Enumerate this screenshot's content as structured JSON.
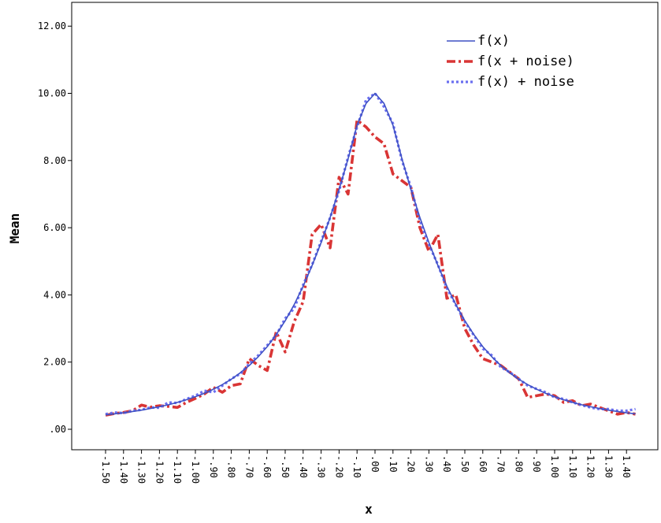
{
  "chart_data": {
    "type": "line",
    "xlabel": "x",
    "ylabel": "Mean",
    "xlim": [
      -1.5,
      1.5
    ],
    "ylim": [
      0,
      12.5
    ],
    "grid": false,
    "legend_position": "top-right",
    "x_ticks": [
      -1.5,
      -1.4,
      -1.3,
      -1.2,
      -1.1,
      -1.0,
      -0.9,
      -0.8,
      -0.7,
      -0.6,
      -0.5,
      -0.4,
      -0.3,
      -0.2,
      -0.1,
      0.0,
      0.1,
      0.2,
      0.3,
      0.4,
      0.5,
      0.6,
      0.7,
      0.8,
      0.9,
      1.0,
      1.1,
      1.2,
      1.3,
      1.4
    ],
    "x_tick_labels": [
      "-1.50",
      "-1.40",
      "-1.30",
      "-1.20",
      "-1.10",
      "-1.00",
      "-.90",
      "-.80",
      "-.70",
      "-.60",
      "-.50",
      "-.40",
      "-.30",
      "-.20",
      "-.10",
      ".00",
      ".10",
      ".20",
      ".30",
      ".40",
      ".50",
      ".60",
      ".70",
      ".80",
      ".90",
      "1.00",
      "1.10",
      "1.20",
      "1.30",
      "1.40"
    ],
    "y_ticks": [
      0,
      2,
      4,
      6,
      8,
      10,
      12
    ],
    "y_tick_labels": [
      ".00",
      "2.00",
      "4.00",
      "6.00",
      "8.00",
      "10.00",
      "12.00"
    ],
    "series": [
      {
        "name": "f(x)",
        "color": "#3f51c4",
        "style": "solid",
        "x": [
          -1.5,
          -1.45,
          -1.4,
          -1.35,
          -1.3,
          -1.25,
          -1.2,
          -1.15,
          -1.1,
          -1.05,
          -1.0,
          -0.95,
          -0.9,
          -0.85,
          -0.8,
          -0.75,
          -0.7,
          -0.65,
          -0.6,
          -0.55,
          -0.5,
          -0.45,
          -0.4,
          -0.35,
          -0.3,
          -0.25,
          -0.2,
          -0.15,
          -0.1,
          -0.05,
          0.0,
          0.05,
          0.1,
          0.15,
          0.2,
          0.25,
          0.3,
          0.35,
          0.4,
          0.45,
          0.5,
          0.55,
          0.6,
          0.65,
          0.7,
          0.75,
          0.8,
          0.85,
          0.9,
          0.95,
          1.0,
          1.05,
          1.1,
          1.15,
          1.2,
          1.25,
          1.3,
          1.35,
          1.4,
          1.45
        ],
        "y": [
          0.43,
          0.46,
          0.49,
          0.53,
          0.57,
          0.62,
          0.67,
          0.73,
          0.8,
          0.88,
          0.97,
          1.07,
          1.19,
          1.33,
          1.49,
          1.68,
          1.9,
          2.16,
          2.46,
          2.82,
          3.23,
          3.71,
          4.26,
          4.88,
          5.56,
          6.3,
          7.14,
          8.05,
          9.05,
          9.7,
          10.0,
          9.7,
          9.05,
          8.05,
          7.14,
          6.3,
          5.56,
          4.88,
          4.26,
          3.71,
          3.23,
          2.82,
          2.46,
          2.16,
          1.9,
          1.68,
          1.49,
          1.33,
          1.19,
          1.07,
          0.97,
          0.88,
          0.8,
          0.73,
          0.67,
          0.62,
          0.57,
          0.53,
          0.49,
          0.46
        ]
      },
      {
        "name": "f(x + noise)",
        "color": "#d93535",
        "style": "dash-dot",
        "x": [
          -1.5,
          -1.45,
          -1.4,
          -1.35,
          -1.3,
          -1.25,
          -1.2,
          -1.15,
          -1.1,
          -1.05,
          -1.0,
          -0.95,
          -0.9,
          -0.85,
          -0.8,
          -0.75,
          -0.7,
          -0.65,
          -0.6,
          -0.55,
          -0.5,
          -0.45,
          -0.4,
          -0.35,
          -0.3,
          -0.25,
          -0.2,
          -0.15,
          -0.1,
          -0.05,
          0.0,
          0.05,
          0.1,
          0.15,
          0.2,
          0.25,
          0.3,
          0.35,
          0.4,
          0.45,
          0.5,
          0.55,
          0.6,
          0.65,
          0.7,
          0.75,
          0.8,
          0.85,
          0.9,
          0.95,
          1.0,
          1.05,
          1.1,
          1.15,
          1.2,
          1.25,
          1.3,
          1.35,
          1.4,
          1.45
        ],
        "y": [
          0.42,
          0.47,
          0.5,
          0.55,
          0.72,
          0.66,
          0.7,
          0.68,
          0.65,
          0.8,
          0.92,
          1.05,
          1.25,
          1.1,
          1.3,
          1.35,
          2.1,
          1.9,
          1.75,
          2.9,
          2.3,
          3.2,
          3.8,
          5.8,
          6.1,
          5.4,
          7.5,
          7.0,
          9.2,
          9.0,
          8.7,
          8.5,
          7.6,
          7.4,
          7.2,
          6.0,
          5.3,
          5.8,
          3.9,
          4.0,
          3.0,
          2.5,
          2.1,
          2.0,
          1.9,
          1.7,
          1.5,
          0.95,
          1.0,
          1.05,
          1.0,
          0.8,
          0.85,
          0.7,
          0.75,
          0.65,
          0.55,
          0.45,
          0.5,
          0.45
        ]
      },
      {
        "name": "f(x) + noise",
        "color": "#6b6ff0",
        "style": "dotted",
        "x": [
          -1.5,
          -1.45,
          -1.4,
          -1.35,
          -1.3,
          -1.25,
          -1.2,
          -1.15,
          -1.1,
          -1.05,
          -1.0,
          -0.95,
          -0.9,
          -0.85,
          -0.8,
          -0.75,
          -0.7,
          -0.65,
          -0.6,
          -0.55,
          -0.5,
          -0.45,
          -0.4,
          -0.35,
          -0.3,
          -0.25,
          -0.2,
          -0.15,
          -0.1,
          -0.05,
          0.0,
          0.05,
          0.1,
          0.15,
          0.2,
          0.25,
          0.3,
          0.35,
          0.4,
          0.45,
          0.5,
          0.55,
          0.6,
          0.65,
          0.7,
          0.75,
          0.8,
          0.85,
          0.9,
          0.95,
          1.0,
          1.05,
          1.1,
          1.15,
          1.2,
          1.25,
          1.3,
          1.35,
          1.4,
          1.45
        ],
        "y": [
          0.45,
          0.5,
          0.48,
          0.55,
          0.58,
          0.65,
          0.64,
          0.8,
          0.78,
          0.9,
          1.0,
          1.15,
          1.1,
          1.3,
          1.5,
          1.65,
          1.95,
          2.2,
          2.5,
          2.8,
          3.3,
          3.6,
          4.3,
          4.9,
          5.6,
          6.3,
          7.1,
          8.1,
          9.0,
          9.8,
          10.0,
          9.6,
          9.1,
          8.0,
          7.2,
          6.2,
          5.5,
          4.9,
          4.2,
          3.7,
          3.2,
          2.8,
          2.4,
          2.2,
          1.85,
          1.7,
          1.5,
          1.3,
          1.2,
          1.1,
          0.95,
          0.9,
          0.8,
          0.72,
          0.65,
          0.6,
          0.6,
          0.55,
          0.55,
          0.6
        ]
      }
    ]
  }
}
